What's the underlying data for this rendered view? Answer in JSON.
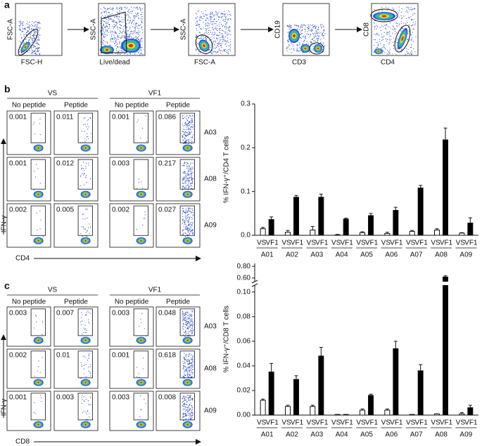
{
  "panel_labels": [
    "a",
    "b",
    "c"
  ],
  "gating": [
    {
      "x_label": "FSC-H",
      "y_label": "FSC-A"
    },
    {
      "x_label": "Live/dead",
      "y_label": "SSC-A"
    },
    {
      "x_label": "FSC-A",
      "y_label": "SSC-A"
    },
    {
      "x_label": "CD3",
      "y_label": "CD19"
    },
    {
      "x_label": "CD4",
      "y_label": "CD8"
    }
  ],
  "flow": [
    {
      "groups": [
        "VS",
        "VF1"
      ],
      "conditions": [
        "No peptide",
        "Peptide",
        "No peptide",
        "Peptide"
      ],
      "rows": [
        "A03",
        "A08",
        "A09"
      ],
      "gate_values": [
        [
          "0.001",
          "0.011",
          "0.001",
          "0.086"
        ],
        [
          "0.001",
          "0.012",
          "0.003",
          "0.217"
        ],
        [
          "0.002",
          "0.005",
          "0.002",
          "0.027"
        ]
      ],
      "y_label": "IFN-γ",
      "x_label": "CD4"
    },
    {
      "groups": [
        "VS",
        "VF1"
      ],
      "conditions": [
        "No peptide",
        "Peptide",
        "No peptide",
        "Peptide"
      ],
      "rows": [
        "A03",
        "A08",
        "A09"
      ],
      "gate_values": [
        [
          "0.003",
          "0.007",
          "0.003",
          "0.048"
        ],
        [
          "0.002",
          "0.01",
          "0.001",
          "0.618"
        ],
        [
          "0.001",
          "0.003",
          "0.003",
          "0.008"
        ]
      ],
      "y_label": "IFN-γ",
      "x_label": "CD8"
    }
  ],
  "chart_data": [
    {
      "type": "bar",
      "y_label": "% IFN-γ⁺/CD4 T cells",
      "categories": [
        "A01",
        "A02",
        "A03",
        "A04",
        "A05",
        "A06",
        "A07",
        "A08",
        "A09"
      ],
      "series": [
        {
          "name": "VS",
          "color": "#ffffff",
          "values": [
            0.015,
            0.007,
            0.012,
            0.001,
            0.006,
            0.004,
            0.009,
            0.012,
            0.005
          ],
          "errors": [
            0.003,
            0.004,
            0.008,
            0.001,
            0.002,
            0.003,
            0.002,
            0.003,
            0.001
          ]
        },
        {
          "name": "VF1",
          "color": "#000000",
          "values": [
            0.036,
            0.087,
            0.087,
            0.037,
            0.045,
            0.057,
            0.108,
            0.218,
            0.028
          ],
          "errors": [
            0.006,
            0.004,
            0.007,
            0.002,
            0.005,
            0.007,
            0.006,
            0.027,
            0.012
          ]
        }
      ],
      "ylim": [
        0,
        0.3
      ],
      "yticks": [
        {
          "value": 0,
          "label": "0.0"
        },
        0.1,
        0.2,
        0.3
      ]
    },
    {
      "type": "bar",
      "y_label": "% IFN-γ⁺/CD8 T cells",
      "categories": [
        "A01",
        "A02",
        "A03",
        "A04",
        "A05",
        "A06",
        "A07",
        "A08",
        "A09"
      ],
      "series": [
        {
          "name": "VS",
          "color": "#ffffff",
          "values": [
            0.012,
            0.007,
            0.007,
            0.0005,
            0.004,
            0.004,
            0.0005,
            0.001,
            0.001
          ],
          "errors": [
            0.001,
            0.001,
            0.001,
            0,
            0.001,
            0.001,
            0,
            0,
            0.001
          ]
        },
        {
          "name": "VF1",
          "color": "#000000",
          "values": [
            0.035,
            0.029,
            0.048,
            0.0005,
            0.016,
            0.054,
            0.036,
            0.618,
            0.006
          ],
          "errors": [
            0.007,
            0.003,
            0.007,
            0,
            0.001,
            0.006,
            0.005,
            0.02,
            0.002
          ]
        }
      ],
      "ylim": [
        0,
        0.85
      ],
      "y_break": [
        0.105,
        0.55
      ],
      "yticks": [
        {
          "value": 0,
          "label": "0.00"
        },
        0.02,
        0.04,
        0.06,
        0.08,
        {
          "value": 0.1,
          "label": "0.10"
        },
        {
          "value": 0.6,
          "label": "0.60"
        },
        {
          "value": 0.8,
          "label": "0.80"
        }
      ]
    }
  ]
}
